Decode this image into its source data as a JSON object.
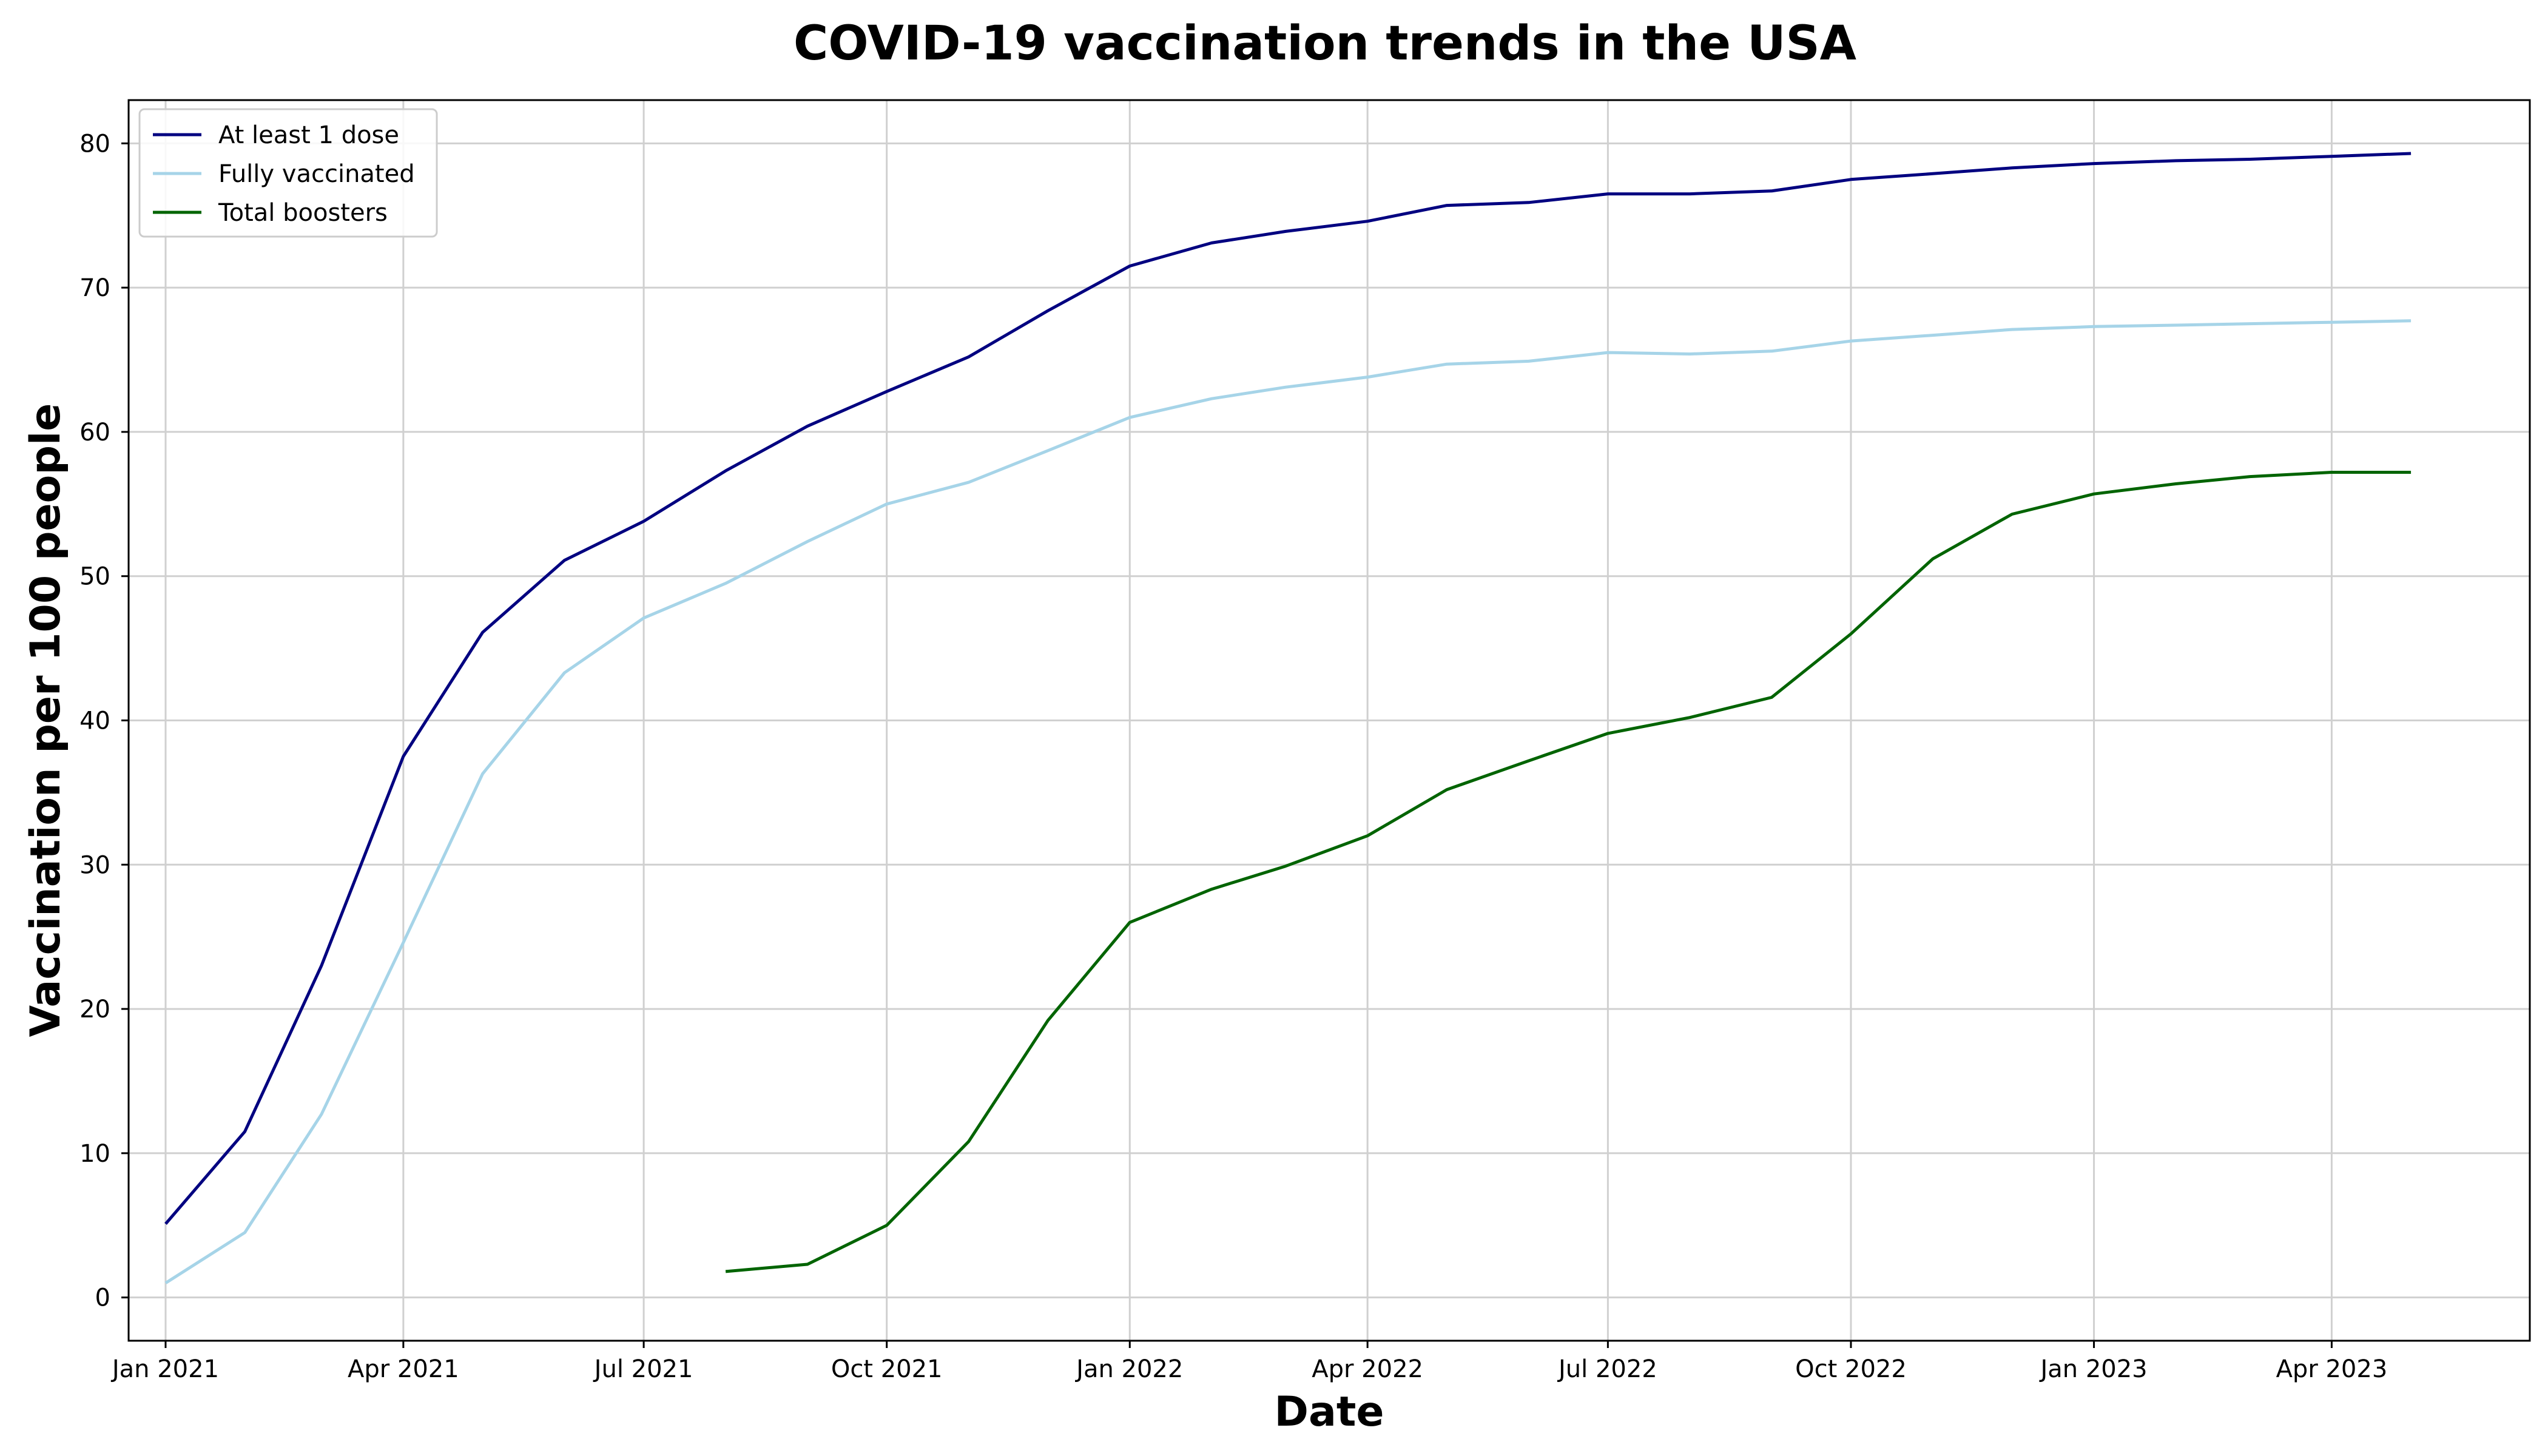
{
  "chart_data": {
    "type": "line",
    "title": "COVID-19 vaccination trends in the USA",
    "xlabel": "Date",
    "ylabel": "Vaccination per 100 people",
    "x_type": "date",
    "xlim": [
      "2020-12-18",
      "2023-06-15"
    ],
    "ylim": [
      -3,
      83
    ],
    "x_ticks": [
      {
        "date": "2021-01-01",
        "label": "Jan 2021"
      },
      {
        "date": "2021-04-01",
        "label": "Apr 2021"
      },
      {
        "date": "2021-07-01",
        "label": "Jul 2021"
      },
      {
        "date": "2021-10-01",
        "label": "Oct 2021"
      },
      {
        "date": "2022-01-01",
        "label": "Jan 2022"
      },
      {
        "date": "2022-04-01",
        "label": "Apr 2022"
      },
      {
        "date": "2022-07-01",
        "label": "Jul 2022"
      },
      {
        "date": "2022-10-01",
        "label": "Oct 2022"
      },
      {
        "date": "2023-01-01",
        "label": "Jan 2023"
      },
      {
        "date": "2023-04-01",
        "label": "Apr 2023"
      }
    ],
    "y_ticks": [
      0,
      10,
      20,
      30,
      40,
      50,
      60,
      70,
      80
    ],
    "grid": true,
    "legend_position": "upper-left",
    "series": [
      {
        "name": "At least 1 dose",
        "color": "#000080",
        "points": [
          [
            "2021-01-01",
            5.1
          ],
          [
            "2021-01-31",
            11.5
          ],
          [
            "2021-03-01",
            23.0
          ],
          [
            "2021-04-01",
            37.5
          ],
          [
            "2021-05-01",
            46.1
          ],
          [
            "2021-06-01",
            51.1
          ],
          [
            "2021-07-01",
            53.8
          ],
          [
            "2021-08-01",
            57.3
          ],
          [
            "2021-09-01",
            60.4
          ],
          [
            "2021-10-01",
            62.8
          ],
          [
            "2021-11-01",
            65.2
          ],
          [
            "2021-12-01",
            68.4
          ],
          [
            "2022-01-01",
            71.5
          ],
          [
            "2022-02-01",
            73.1
          ],
          [
            "2022-03-01",
            73.9
          ],
          [
            "2022-04-01",
            74.6
          ],
          [
            "2022-05-01",
            75.7
          ],
          [
            "2022-06-01",
            75.9
          ],
          [
            "2022-07-01",
            76.5
          ],
          [
            "2022-08-01",
            76.5
          ],
          [
            "2022-09-01",
            76.7
          ],
          [
            "2022-10-01",
            77.5
          ],
          [
            "2022-11-01",
            77.9
          ],
          [
            "2022-12-01",
            78.3
          ],
          [
            "2023-01-01",
            78.6
          ],
          [
            "2023-02-01",
            78.8
          ],
          [
            "2023-03-01",
            78.9
          ],
          [
            "2023-04-01",
            79.1
          ],
          [
            "2023-05-01",
            79.3
          ]
        ]
      },
      {
        "name": "Fully vaccinated",
        "color": "#a6d4e8",
        "points": [
          [
            "2021-01-01",
            1.0
          ],
          [
            "2021-01-31",
            4.5
          ],
          [
            "2021-03-01",
            12.7
          ],
          [
            "2021-04-01",
            24.6
          ],
          [
            "2021-05-01",
            36.3
          ],
          [
            "2021-06-01",
            43.3
          ],
          [
            "2021-07-01",
            47.1
          ],
          [
            "2021-08-01",
            49.5
          ],
          [
            "2021-09-01",
            52.4
          ],
          [
            "2021-10-01",
            55.0
          ],
          [
            "2021-11-01",
            56.5
          ],
          [
            "2021-12-01",
            58.7
          ],
          [
            "2022-01-01",
            61.0
          ],
          [
            "2022-02-01",
            62.3
          ],
          [
            "2022-03-01",
            63.1
          ],
          [
            "2022-04-01",
            63.8
          ],
          [
            "2022-05-01",
            64.7
          ],
          [
            "2022-06-01",
            64.9
          ],
          [
            "2022-07-01",
            65.5
          ],
          [
            "2022-08-01",
            65.4
          ],
          [
            "2022-09-01",
            65.6
          ],
          [
            "2022-10-01",
            66.3
          ],
          [
            "2022-11-01",
            66.7
          ],
          [
            "2022-12-01",
            67.1
          ],
          [
            "2023-01-01",
            67.3
          ],
          [
            "2023-02-01",
            67.4
          ],
          [
            "2023-03-01",
            67.5
          ],
          [
            "2023-04-01",
            67.6
          ],
          [
            "2023-05-01",
            67.7
          ]
        ]
      },
      {
        "name": "Total boosters",
        "color": "#006400",
        "points": [
          [
            "2021-08-01",
            1.8
          ],
          [
            "2021-09-01",
            2.3
          ],
          [
            "2021-10-01",
            5.0
          ],
          [
            "2021-11-01",
            10.8
          ],
          [
            "2021-12-01",
            19.2
          ],
          [
            "2022-01-01",
            26.0
          ],
          [
            "2022-02-01",
            28.3
          ],
          [
            "2022-03-01",
            29.9
          ],
          [
            "2022-04-01",
            32.0
          ],
          [
            "2022-05-01",
            35.2
          ],
          [
            "2022-06-01",
            37.2
          ],
          [
            "2022-07-01",
            39.1
          ],
          [
            "2022-08-01",
            40.2
          ],
          [
            "2022-09-01",
            41.6
          ],
          [
            "2022-10-01",
            46.0
          ],
          [
            "2022-11-01",
            51.2
          ],
          [
            "2022-12-01",
            54.3
          ],
          [
            "2023-01-01",
            55.7
          ],
          [
            "2023-02-01",
            56.4
          ],
          [
            "2023-03-01",
            56.9
          ],
          [
            "2023-04-01",
            57.2
          ],
          [
            "2023-05-01",
            57.2
          ]
        ]
      }
    ]
  }
}
